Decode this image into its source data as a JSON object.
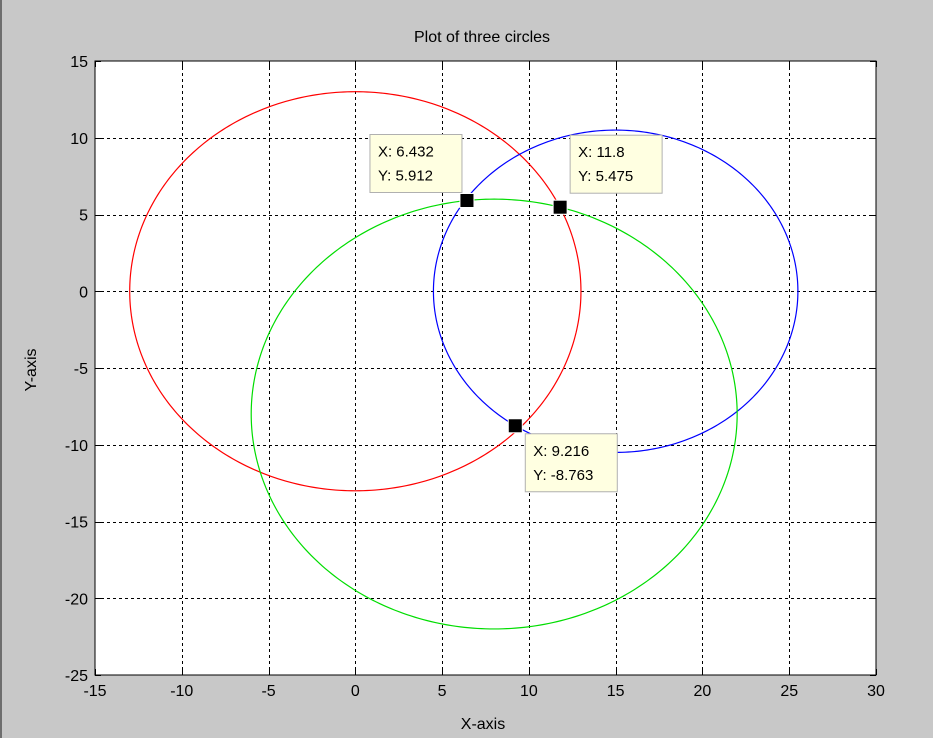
{
  "window": {
    "background": "#c8c8c8"
  },
  "chart_data": {
    "type": "line",
    "title": "Plot of three circles",
    "xlabel": "X-axis",
    "ylabel": "Y-axis",
    "xlim": [
      -15,
      30
    ],
    "ylim": [
      -25,
      15
    ],
    "xticks": [
      -15,
      -10,
      -5,
      0,
      5,
      10,
      15,
      20,
      25,
      30
    ],
    "yticks": [
      -25,
      -20,
      -15,
      -10,
      -5,
      0,
      5,
      10,
      15
    ],
    "grid": true,
    "grid_style": "dashed",
    "series": [
      {
        "color": "#ff0000",
        "shape": "circle",
        "center": [
          0,
          0
        ],
        "radius": 13
      },
      {
        "color": "#0000ff",
        "shape": "circle",
        "center": [
          15,
          0
        ],
        "radius": 10.5
      },
      {
        "color": "#00dd00",
        "shape": "circle",
        "center": [
          8,
          -8
        ],
        "radius": 14
      }
    ],
    "datatips": [
      {
        "x": 6.432,
        "y": 5.912,
        "x_text": "X: 6.432",
        "y_text": "Y: 5.912",
        "placement": "top-left"
      },
      {
        "x": 11.8,
        "y": 5.475,
        "x_text": "X: 11.8",
        "y_text": "Y: 5.475",
        "placement": "top-right"
      },
      {
        "x": 9.216,
        "y": -8.763,
        "x_text": "X: 9.216",
        "y_text": "Y: -8.763",
        "placement": "bottom-right"
      }
    ]
  }
}
